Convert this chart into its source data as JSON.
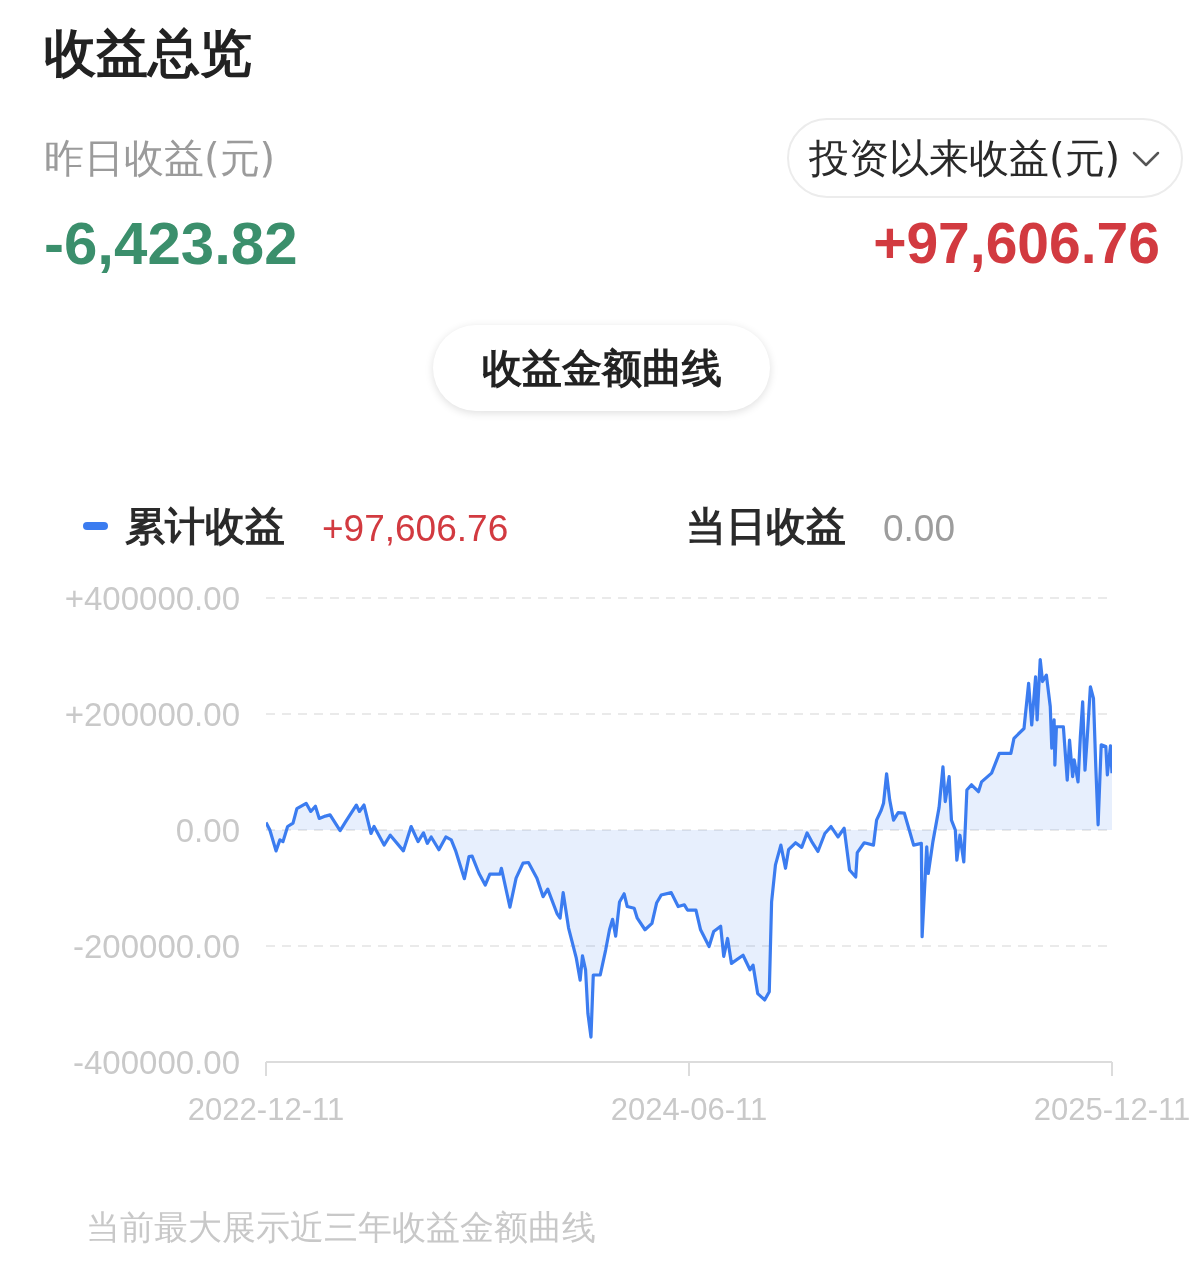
{
  "chart_data": {
    "type": "area",
    "title": "收益总览",
    "annotations": [
      "昨日收益(元)",
      "-6,423.82",
      "投资以来收益(元)",
      "+97,606.76",
      "收益金额曲线",
      "+97,606.76",
      "当日收益",
      "0.00",
      "当前最大展示近三年收益金额曲线"
    ],
    "x": [
      "2022-12-11",
      "2022-12-16",
      "2022-12-24",
      "2022-12-29",
      "2023-01-02",
      "2023-01-08",
      "2023-01-15",
      "2023-01-20",
      "2023-02-01",
      "2023-02-07",
      "2023-02-13",
      "2023-02-18",
      "2023-02-26",
      "2023-03-04",
      "2023-03-17",
      "2023-03-24",
      "2023-04-07",
      "2023-04-11",
      "2023-04-17",
      "2023-04-26",
      "2023-04-30",
      "2023-05-13",
      "2023-05-21",
      "2023-06-07",
      "2023-06-17",
      "2023-06-26",
      "2023-07-03",
      "2023-07-08",
      "2023-07-13",
      "2023-07-23",
      "2023-08-01",
      "2023-08-08",
      "2023-08-14",
      "2023-08-25",
      "2023-08-31",
      "2023-09-04",
      "2023-09-13",
      "2023-09-21",
      "2023-09-27",
      "2023-10-10",
      "2023-10-12",
      "2023-10-23",
      "2023-10-31",
      "2023-11-09",
      "2023-11-16",
      "2023-11-27",
      "2023-12-05",
      "2023-12-11",
      "2023-12-23",
      "2023-12-27",
      "2023-12-31",
      "2024-01-07",
      "2024-01-11",
      "2024-01-17",
      "2024-01-22",
      "2024-01-25",
      "2024-01-29",
      "2024-02-01",
      "2024-02-05",
      "2024-02-08",
      "2024-02-17",
      "2024-02-24",
      "2024-02-29",
      "2024-03-04",
      "2024-03-08",
      "2024-03-13",
      "2024-03-19",
      "2024-03-23",
      "2024-04-01",
      "2024-04-05",
      "2024-04-15",
      "2024-04-24",
      "2024-04-30",
      "2024-05-06",
      "2024-05-19",
      "2024-05-28",
      "2024-06-05",
      "2024-06-09",
      "2024-06-20",
      "2024-06-26",
      "2024-07-07",
      "2024-07-13",
      "2024-07-22",
      "2024-07-26",
      "2024-07-31",
      "2024-08-05",
      "2024-08-20",
      "2024-08-29",
      "2024-09-02",
      "2024-09-08",
      "2024-09-17",
      "2024-09-23",
      "2024-09-26",
      "2024-10-01",
      "2024-10-08",
      "2024-10-14",
      "2024-10-18",
      "2024-10-27",
      "2024-11-04",
      "2024-11-11",
      "2024-11-17",
      "2024-11-25",
      "2024-12-04",
      "2024-12-12",
      "2024-12-21",
      "2024-12-29",
      "2025-01-05",
      "2025-01-13",
      "2025-01-15",
      "2025-01-24",
      "2025-02-05",
      "2025-02-09",
      "2025-02-15",
      "2025-02-18",
      "2025-02-22",
      "2025-02-26",
      "2025-03-03",
      "2025-03-09",
      "2025-03-17",
      "2025-03-24",
      "2025-03-29",
      "2025-04-08",
      "2025-04-09",
      "2025-04-15",
      "2025-04-17",
      "2025-04-23",
      "2025-05-01",
      "2025-05-06",
      "2025-05-09",
      "2025-05-14",
      "2025-05-17",
      "2025-05-22",
      "2025-05-24",
      "2025-05-28",
      "2025-06-02",
      "2025-06-06",
      "2025-06-12",
      "2025-06-21",
      "2025-06-25",
      "2025-07-08",
      "2025-07-18",
      "2025-08-02",
      "2025-08-06",
      "2025-08-19",
      "2025-08-25",
      "2025-08-29",
      "2025-09-03",
      "2025-09-05",
      "2025-09-09",
      "2025-09-12",
      "2025-09-17",
      "2025-09-22",
      "2025-09-24",
      "2025-09-27",
      "2025-09-28",
      "2025-09-30",
      "2025-10-09",
      "2025-10-14",
      "2025-10-17",
      "2025-10-21",
      "2025-10-23",
      "2025-10-28",
      "2025-10-31",
      "2025-11-03",
      "2025-11-06",
      "2025-11-09",
      "2025-11-13",
      "2025-11-17",
      "2025-11-20",
      "2025-11-23",
      "2025-11-27",
      "2025-12-03",
      "2025-12-05",
      "2025-12-09",
      "2025-12-11"
    ],
    "series": [
      {
        "name": "累计收益",
        "color": "#3b7cf0",
        "values": [
          13000,
          0,
          -36000,
          -17000,
          -20000,
          6000,
          12000,
          37000,
          46000,
          32000,
          41000,
          20000,
          24000,
          26000,
          -1000,
          14000,
          43000,
          32000,
          43000,
          -6000,
          6000,
          -26000,
          -9000,
          -36000,
          6000,
          -20000,
          -5000,
          -23000,
          -12000,
          -34000,
          -12000,
          -17000,
          -37000,
          -84000,
          -46000,
          -45000,
          -75000,
          -95000,
          -76000,
          -76000,
          -66000,
          -133000,
          -83000,
          -57000,
          -56000,
          -83000,
          -115000,
          -102000,
          -144000,
          -152000,
          -108000,
          -169000,
          -190000,
          -221000,
          -259000,
          -217000,
          -241000,
          -316000,
          -357000,
          -250000,
          -250000,
          -207000,
          -172000,
          -154000,
          -183000,
          -124000,
          -110000,
          -132000,
          -135000,
          -152000,
          -172000,
          -161000,
          -126000,
          -112000,
          -108000,
          -132000,
          -129000,
          -138000,
          -138000,
          -172000,
          -201000,
          -175000,
          -166000,
          -218000,
          -187000,
          -230000,
          -216000,
          -241000,
          -233000,
          -282000,
          -293000,
          -279000,
          -124000,
          -60000,
          -26000,
          -66000,
          -34000,
          -22000,
          -30000,
          -5000,
          -20000,
          -37000,
          -6000,
          6000,
          -12000,
          3000,
          -69000,
          -81000,
          -39000,
          -22000,
          -26000,
          17000,
          34000,
          46000,
          97000,
          52000,
          17000,
          30000,
          29000,
          -3000,
          -26000,
          -23000,
          -184000,
          -29000,
          -75000,
          -20000,
          39000,
          109000,
          49000,
          92000,
          17000,
          0,
          -52000,
          -9000,
          -55000,
          69000,
          78000,
          66000,
          83000,
          98000,
          132000,
          132000,
          158000,
          175000,
          253000,
          181000,
          264000,
          190000,
          294000,
          256000,
          267000,
          213000,
          141000,
          190000,
          112000,
          178000,
          178000,
          86000,
          155000,
          92000,
          121000,
          83000,
          161000,
          221000,
          103000,
          161000,
          247000,
          227000,
          109000,
          9000,
          147000,
          144000,
          95000,
          145000,
          98000
        ]
      }
    ],
    "xlim": [
      "2022-12-11",
      "2025-12-11"
    ],
    "xticks": [
      "2022-12-11",
      "2024-06-11",
      "2025-12-11"
    ],
    "ylim": [
      -400000,
      400000
    ],
    "yticks": [
      {
        "value": -400000,
        "label": "-400000.00"
      },
      {
        "value": -200000,
        "label": "-200000.00"
      },
      {
        "value": 0,
        "label": "0.00"
      },
      {
        "value": 200000,
        "label": "+200000.00"
      },
      {
        "value": 400000,
        "label": "+400000.00"
      }
    ],
    "grid": "y",
    "legend": "top left"
  }
}
